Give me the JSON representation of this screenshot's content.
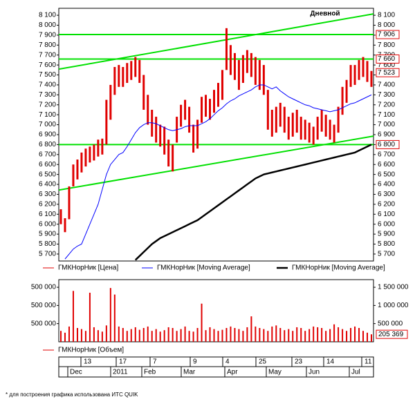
{
  "chart_data": {
    "type": "stock",
    "period_label": "Дневной",
    "ylim": [
      5630,
      8170
    ],
    "yticks": [
      {
        "value": 5700,
        "label": "5 700"
      },
      {
        "value": 5800,
        "label": "5 800"
      },
      {
        "value": 5900,
        "label": "5 900"
      },
      {
        "value": 6000,
        "label": "6 000"
      },
      {
        "value": 6100,
        "label": "6 100"
      },
      {
        "value": 6200,
        "label": "6 200"
      },
      {
        "value": 6300,
        "label": "6 300"
      },
      {
        "value": 6400,
        "label": "6 400"
      },
      {
        "value": 6500,
        "label": "6 500"
      },
      {
        "value": 6600,
        "label": "6 600"
      },
      {
        "value": 6700,
        "label": "6 700"
      },
      {
        "value": 6800,
        "label": "6 800"
      },
      {
        "value": 6900,
        "label": "6 900"
      },
      {
        "value": 7000,
        "label": "7 000"
      },
      {
        "value": 7100,
        "label": "7 100"
      },
      {
        "value": 7200,
        "label": "7 200"
      },
      {
        "value": 7300,
        "label": "7 300"
      },
      {
        "value": 7400,
        "label": "7 400"
      },
      {
        "value": 7500,
        "label": "7 500"
      },
      {
        "value": 7600,
        "label": "7 600"
      },
      {
        "value": 7700,
        "label": "7 700"
      },
      {
        "value": 7800,
        "label": "7 800"
      },
      {
        "value": 7900,
        "label": "7 900"
      },
      {
        "value": 8000,
        "label": "8 000"
      },
      {
        "value": 8100,
        "label": "8 100"
      }
    ],
    "levels": [
      {
        "value": 7906,
        "label": "7 906"
      },
      {
        "value": 7660,
        "label": "7 660"
      },
      {
        "value": 6800,
        "label": "6 800"
      }
    ],
    "level_color": "#00e000",
    "last_price": {
      "value": 7523,
      "label": "7 523"
    },
    "trendlines": [
      {
        "start": 7558,
        "end": 8114
      },
      {
        "start": 6343,
        "end": 6885
      }
    ],
    "price": {
      "name": "ГМКНорНик [Цена]",
      "color": "#e00000",
      "high": [
        6150,
        6060,
        6380,
        6600,
        6650,
        6720,
        6760,
        6780,
        6800,
        6850,
        6860,
        7250,
        7400,
        7580,
        7600,
        7580,
        7620,
        7640,
        7680,
        7650,
        7500,
        7300,
        7150,
        7080,
        7000,
        6980,
        6850,
        6800,
        7080,
        7200,
        7250,
        7180,
        7000,
        7050,
        7280,
        7300,
        7260,
        7350,
        7420,
        7550,
        7970,
        7800,
        7720,
        7650,
        7700,
        7750,
        7720,
        7680,
        7650,
        7600,
        7350,
        7150,
        7180,
        7220,
        7180,
        7080,
        7120,
        7150,
        7080,
        7050,
        7020,
        6980,
        7080,
        7150,
        7100,
        7050,
        7000,
        7180,
        7380,
        7450,
        7600,
        7600,
        7650,
        7680,
        7640,
        7540
      ],
      "low": [
        6000,
        5920,
        6050,
        6380,
        6450,
        6520,
        6580,
        6620,
        6640,
        6680,
        6700,
        6800,
        7050,
        7300,
        7380,
        7380,
        7420,
        7450,
        7480,
        7420,
        7150,
        7000,
        6880,
        6820,
        6780,
        6700,
        6580,
        6530,
        6820,
        6980,
        7050,
        6920,
        6720,
        6760,
        7020,
        7080,
        7050,
        7120,
        7180,
        7250,
        7550,
        7500,
        7450,
        7350,
        7420,
        7520,
        7480,
        7400,
        7350,
        7300,
        6950,
        6880,
        6920,
        6980,
        6920,
        6850,
        6880,
        6920,
        6850,
        6850,
        6820,
        6800,
        6850,
        6930,
        6880,
        6850,
        6820,
        6920,
        7100,
        7220,
        7380,
        7400,
        7450,
        7480,
        7430,
        7380
      ]
    },
    "series": [
      {
        "name": "ГМКНорНик [Moving Average]",
        "color": "#0000ff",
        "width": 1,
        "values": [
          null,
          5650,
          5700,
          5750,
          5780,
          5800,
          5900,
          6000,
          6100,
          6200,
          6350,
          6500,
          6600,
          6650,
          6700,
          6720,
          6780,
          6850,
          6920,
          6970,
          7000,
          7020,
          7020,
          7010,
          6990,
          6970,
          6950,
          6940,
          6950,
          6960,
          6980,
          6990,
          6990,
          6990,
          7010,
          7030,
          7060,
          7100,
          7140,
          7170,
          7210,
          7240,
          7260,
          7290,
          7310,
          7330,
          7350,
          7380,
          7400,
          7400,
          7380,
          7360,
          7380,
          7340,
          7310,
          7280,
          7260,
          7240,
          7220,
          7200,
          7190,
          7170,
          7160,
          7150,
          7140,
          7130,
          7140,
          7150,
          7170,
          7190,
          7210,
          7220,
          7240,
          7260,
          7280,
          7300
        ]
      },
      {
        "name": "ГМКНорНик [Moving Average]",
        "color": "#000000",
        "width": 2.5,
        "values": [
          null,
          null,
          null,
          null,
          null,
          null,
          null,
          null,
          null,
          null,
          null,
          null,
          null,
          null,
          null,
          null,
          null,
          null,
          5640,
          5680,
          5720,
          5760,
          5800,
          5830,
          5860,
          5880,
          5900,
          5920,
          5940,
          5960,
          5980,
          6000,
          6020,
          6040,
          6070,
          6100,
          6130,
          6160,
          6190,
          6220,
          6250,
          6280,
          6310,
          6340,
          6370,
          6400,
          6430,
          6460,
          6480,
          6500,
          6510,
          6520,
          6530,
          6540,
          6550,
          6560,
          6570,
          6580,
          6590,
          6600,
          6610,
          6620,
          6630,
          6640,
          6650,
          6660,
          6670,
          6680,
          6690,
          6700,
          6710,
          6720,
          6740,
          6760,
          6780,
          6800
        ]
      }
    ],
    "volume": {
      "name": "ГМКНорНик [Объем]",
      "color": "#e00000",
      "ylim": [
        0,
        1710000
      ],
      "yticks": [
        {
          "value": 1500000,
          "label": "1 500 000"
        },
        {
          "value": 1000000,
          "label": "1 000 000"
        },
        {
          "value": 500000,
          "label": "500 000"
        }
      ],
      "left_tick_labels": [
        "500 000",
        "500 000",
        "500 000"
      ],
      "last": {
        "value": 205369,
        "label": "205 369"
      },
      "values": [
        300000,
        250000,
        420000,
        1400000,
        380000,
        350000,
        300000,
        1350000,
        400000,
        320000,
        280000,
        450000,
        1480000,
        1300000,
        420000,
        380000,
        300000,
        350000,
        400000,
        330000,
        380000,
        420000,
        300000,
        350000,
        280000,
        320000,
        400000,
        380000,
        300000,
        350000,
        420000,
        300000,
        280000,
        380000,
        1050000,
        320000,
        400000,
        350000,
        300000,
        330000,
        380000,
        420000,
        380000,
        350000,
        300000,
        400000,
        700000,
        420000,
        380000,
        350000,
        300000,
        420000,
        450000,
        380000,
        320000,
        350000,
        300000,
        400000,
        380000,
        300000,
        350000,
        420000,
        400000,
        380000,
        300000,
        350000,
        480000,
        400000,
        350000,
        300000,
        380000,
        420000,
        380000,
        300000,
        250000,
        205369
      ]
    },
    "time_axis": {
      "days": [
        "13",
        "17",
        "7",
        "9",
        "4",
        "25",
        "23",
        "14",
        "11"
      ],
      "months": [
        "Dec",
        "2011",
        "Feb",
        "Mar",
        "Apr",
        "May",
        "Jun",
        "Jul"
      ]
    },
    "footnote": "* для построения графика использована ИТС QUIK"
  }
}
